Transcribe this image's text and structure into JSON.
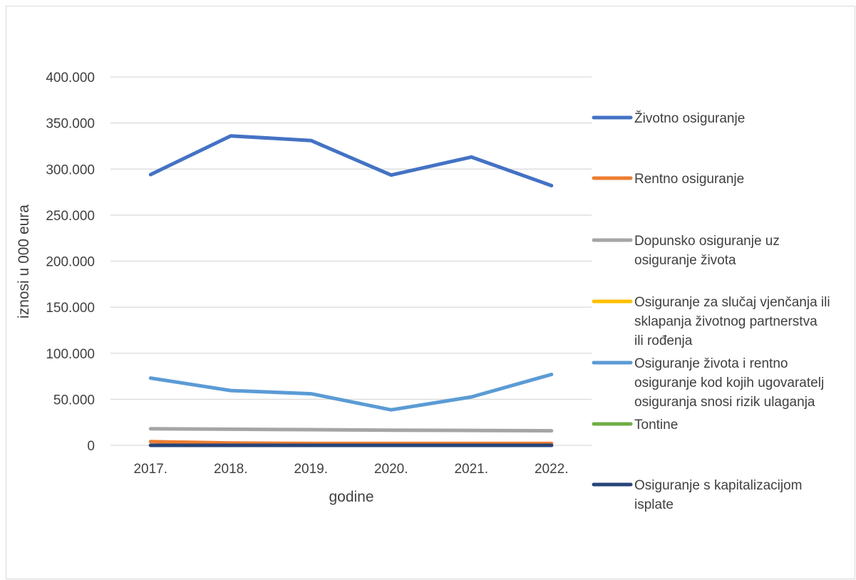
{
  "chart_data": {
    "type": "line",
    "title": "",
    "xlabel": "godine",
    "ylabel": "iznosi u 000 eura",
    "categories": [
      "2017.",
      "2018.",
      "2019.",
      "2020.",
      "2021.",
      "2022."
    ],
    "ylim": [
      0,
      400000
    ],
    "yticks": [
      0,
      50000,
      100000,
      150000,
      200000,
      250000,
      300000,
      350000,
      400000
    ],
    "ytick_labels": [
      "0",
      "50.000",
      "100.000",
      "150.000",
      "200.000",
      "250.000",
      "300.000",
      "350.000",
      "400.000"
    ],
    "grid": true,
    "legend_position": "right",
    "series": [
      {
        "name": "Životno osiguranje",
        "color": "#4472c4",
        "values": [
          294000,
          336000,
          331000,
          293500,
          313000,
          282000
        ]
      },
      {
        "name": "Rentno osiguranje",
        "color": "#ed7d31",
        "values": [
          4000,
          2500,
          2000,
          2000,
          2000,
          2000
        ]
      },
      {
        "name": "Dopunsko osiguranje uz osiguranje života",
        "color": "#a5a5a5",
        "values": [
          18000,
          17500,
          17000,
          16500,
          16200,
          15800
        ]
      },
      {
        "name": "Osiguranje za slučaj vjenčanja ili sklapanja životnog partnerstva ili rođenja",
        "color": "#ffc000",
        "values": [
          0,
          0,
          0,
          0,
          0,
          0
        ]
      },
      {
        "name": "Osiguranje života i rentno osiguranje kod kojih ugovaratelj osiguranja snosi rizik ulaganja",
        "color": "#5b9bd5",
        "values": [
          73000,
          59500,
          56000,
          38500,
          52500,
          77000
        ]
      },
      {
        "name": "Tontine",
        "color": "#70ad47",
        "values": [
          0,
          0,
          0,
          0,
          0,
          0
        ]
      },
      {
        "name": "Osiguranje s kapitalizacijom isplate",
        "color": "#264478",
        "values": [
          0,
          0,
          0,
          0,
          0,
          0
        ]
      }
    ],
    "legend": [
      {
        "lines": [
          "Životno osiguranje"
        ]
      },
      {
        "lines": [
          "Rentno osiguranje"
        ]
      },
      {
        "lines": [
          "Dopunsko osiguranje uz",
          "osiguranje života"
        ]
      },
      {
        "lines": [
          "Osiguranje za slučaj vjenčanja ili",
          "sklapanja životnog partnerstva",
          "ili rođenja"
        ]
      },
      {
        "lines": [
          "Osiguranje života i rentno",
          "osiguranje kod kojih ugovaratelj",
          "osiguranja snosi rizik ulaganja"
        ]
      },
      {
        "lines": [
          "Tontine"
        ]
      },
      {
        "lines": [
          "Osiguranje s kapitalizacijom",
          "isplate"
        ]
      }
    ]
  }
}
